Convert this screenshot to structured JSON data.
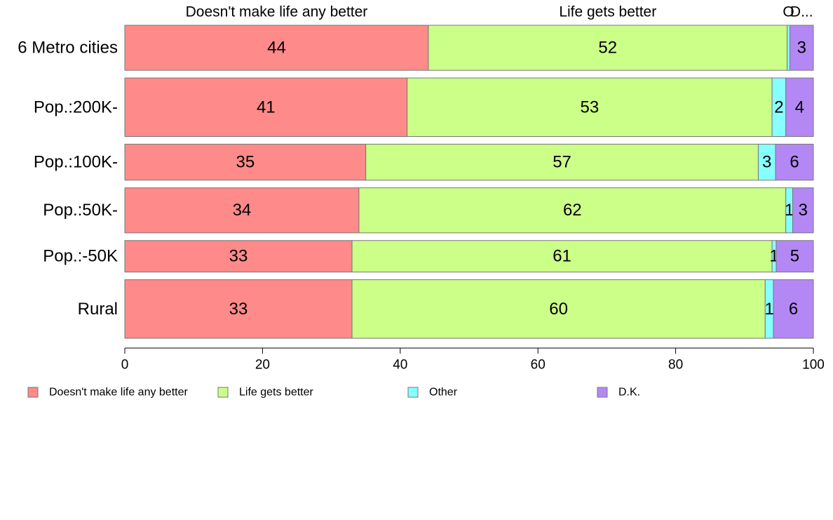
{
  "chart_data": {
    "type": "bar",
    "orientation": "horizontal",
    "stacked": true,
    "percent": true,
    "categories": [
      "6 Metro cities",
      "Pop.:200K-",
      "Pop.:100K-",
      "Pop.:50K-",
      "Pop.:-50K",
      "Rural"
    ],
    "weights": [
      1.0,
      1.3,
      0.8,
      1.0,
      0.7,
      1.3
    ],
    "series": [
      {
        "name": "Doesn't make life any better",
        "color": "#FF8A8A",
        "values": [
          44,
          41,
          35,
          34,
          33,
          33
        ],
        "labels": [
          "44",
          "41",
          "35",
          "34",
          "33",
          "33"
        ]
      },
      {
        "name": "Life gets better",
        "color": "#CCFF88",
        "values": [
          52,
          53,
          57,
          62,
          61,
          60
        ],
        "labels": [
          "52",
          "53",
          "57",
          "62",
          "61",
          "60"
        ]
      },
      {
        "name": "Other",
        "color": "#88FFFF",
        "values": [
          0.4,
          2,
          2.5,
          1,
          0.6,
          1.2
        ],
        "labels": [
          "",
          "2",
          "3",
          "1",
          "1",
          "1"
        ]
      },
      {
        "name": "D.K.",
        "color": "#B388F5",
        "values": [
          3.4,
          4,
          5.5,
          3,
          5.4,
          5.8
        ],
        "labels": [
          "3",
          "4",
          "6",
          "3",
          "5",
          "6"
        ]
      }
    ],
    "top_labels": [
      "Doesn't make life any better",
      "Life gets better",
      "Other",
      "D.K."
    ],
    "top_labels_display": [
      "Doesn't make life any better",
      "Life gets better",
      "O",
      "D..."
    ],
    "xlim": [
      0,
      100
    ],
    "xticks": [
      0,
      20,
      40,
      60,
      80,
      100
    ],
    "grid": false,
    "legend_position": "bottom"
  }
}
